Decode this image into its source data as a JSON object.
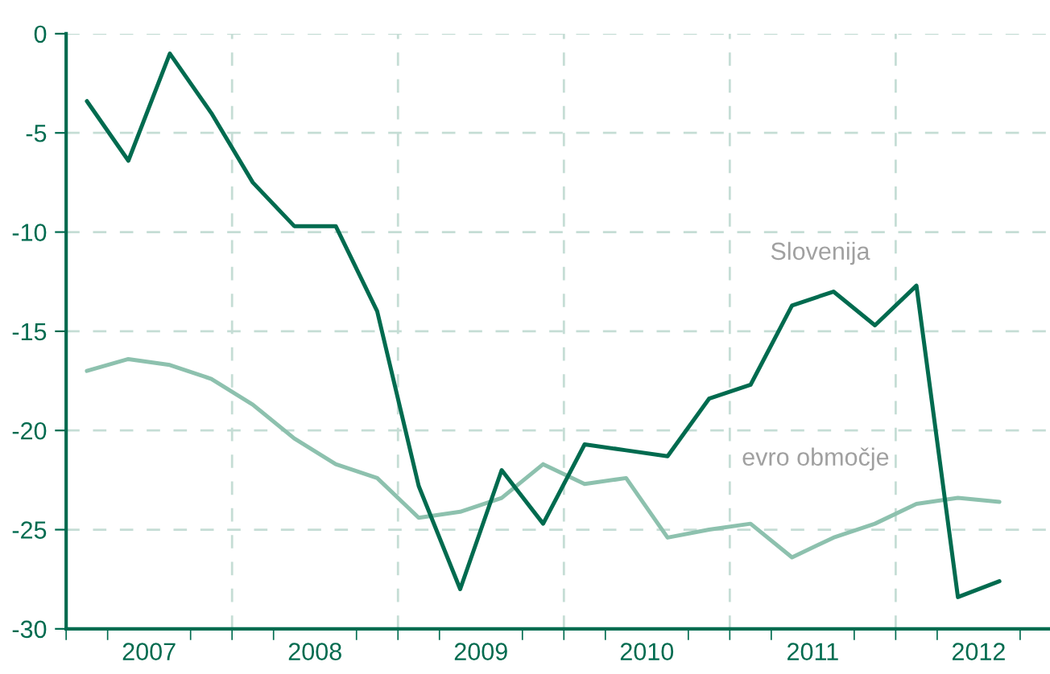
{
  "chart_data": {
    "type": "line",
    "x": [
      2007.125,
      2007.375,
      2007.625,
      2007.875,
      2008.125,
      2008.375,
      2008.625,
      2008.875,
      2009.125,
      2009.375,
      2009.625,
      2009.875,
      2010.125,
      2010.375,
      2010.625,
      2010.875,
      2011.125,
      2011.375,
      2011.625,
      2011.875,
      2012.125,
      2012.375,
      2012.625
    ],
    "series": [
      {
        "name": "Slovenija",
        "color": "#006b4f",
        "values": [
          -3.4,
          -6.4,
          -1.0,
          -4.0,
          -7.5,
          -9.7,
          -9.7,
          -14.0,
          -22.8,
          -28.0,
          -22.0,
          -24.7,
          -20.7,
          -21.0,
          -21.3,
          -18.4,
          -17.7,
          -13.7,
          -13.0,
          -14.7,
          -12.7,
          -28.4,
          -27.6
        ]
      },
      {
        "name": "evro območje",
        "color": "#8dc1ae",
        "values": [
          -17.0,
          -16.4,
          -16.7,
          -17.4,
          -18.7,
          -20.4,
          -21.7,
          -22.4,
          -24.4,
          -24.1,
          -23.4,
          -21.7,
          -22.7,
          -22.4,
          -25.4,
          -25.0,
          -24.7,
          -26.4,
          -25.4,
          -24.7,
          -23.7,
          -23.4,
          -23.6
        ]
      }
    ],
    "xlim": [
      2007,
      2012.93
    ],
    "xticks": [
      {
        "value": 2007.5,
        "label": "2007"
      },
      {
        "value": 2008.5,
        "label": "2008"
      },
      {
        "value": 2009.5,
        "label": "2009"
      },
      {
        "value": 2010.5,
        "label": "2010"
      },
      {
        "value": 2011.5,
        "label": "2011"
      },
      {
        "value": 2012.5,
        "label": "2012"
      }
    ],
    "ylim": [
      -30,
      0
    ],
    "yticks": [
      -30,
      -25,
      -20,
      -15,
      -10,
      -5,
      0
    ],
    "ref_lines": [
      {
        "axis": "x",
        "value": 2008,
        "label": null,
        "line_style": "dashed",
        "color": "#c5ddd5"
      },
      {
        "axis": "x",
        "value": 2009,
        "label": null,
        "line_style": "dashed",
        "color": "#c5ddd5"
      },
      {
        "axis": "x",
        "value": 2010,
        "label": null,
        "line_style": "dashed",
        "color": "#c5ddd5"
      },
      {
        "axis": "x",
        "value": 2011,
        "label": null,
        "line_style": "dashed",
        "color": "#c5ddd5"
      },
      {
        "axis": "x",
        "value": 2012,
        "label": null,
        "line_style": "dashed",
        "color": "#c5ddd5"
      }
    ],
    "grid": "y",
    "legend": false,
    "line_style": "solid",
    "marker": "none"
  }
}
